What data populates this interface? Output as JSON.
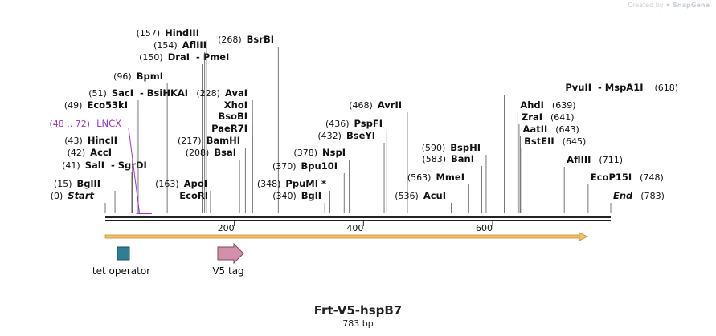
{
  "brand": {
    "created_by": "Created by",
    "name": "SnapGene"
  },
  "title": "Frt-V5-hspB7",
  "length_label": "783 bp",
  "sequence_length": 783,
  "ruler": {
    "ticks": [
      200,
      400,
      600
    ]
  },
  "sites": [
    {
      "name": "Start",
      "pos": "(0)",
      "bp": 0,
      "italic": true
    },
    {
      "name": "BglII",
      "pos": "(15)",
      "bp": 15
    },
    {
      "name": "SalI",
      "name2": "SgrDI",
      "pos": "(41)",
      "bp": 41
    },
    {
      "name": "AccI",
      "pos": "(42)",
      "bp": 42
    },
    {
      "name": "HincII",
      "pos": "(43)",
      "bp": 43
    },
    {
      "name": "LNCX",
      "pos": "(48 .. 72)",
      "bp": 48,
      "bp_end": 72,
      "feature": true
    },
    {
      "name": "Eco53kI",
      "pos": "(49)",
      "bp": 49
    },
    {
      "name": "SacI",
      "name2": "BsiHKAI",
      "pos": "(51)",
      "bp": 51
    },
    {
      "name": "BpmI",
      "pos": "(96)",
      "bp": 96
    },
    {
      "name": "DraI",
      "name2": "PmeI",
      "pos": "(150)",
      "bp": 150
    },
    {
      "name": "AflIII",
      "pos": "(154)",
      "bp": 154
    },
    {
      "name": "HindIII",
      "pos": "(157)",
      "bp": 157
    },
    {
      "name": "ApoI",
      "pos": "(163)",
      "bp": 163
    },
    {
      "name": "EcoRI",
      "pos": "",
      "bp": 163
    },
    {
      "name": "BsaI",
      "pos": "(208)",
      "bp": 208
    },
    {
      "name": "BamHI",
      "pos": "(217)",
      "bp": 217
    },
    {
      "name": "PaeR7I",
      "pos": "",
      "bp": 228
    },
    {
      "name": "BsoBI",
      "pos": "",
      "bp": 228
    },
    {
      "name": "XhoI",
      "pos": "",
      "bp": 228
    },
    {
      "name": "AvaI",
      "pos": "(228)",
      "bp": 228
    },
    {
      "name": "BsrBI",
      "pos": "(268)",
      "bp": 268
    },
    {
      "name": "BglI",
      "pos": "(340)",
      "bp": 340
    },
    {
      "name": "PpuMI *",
      "pos": "(348)",
      "bp": 348
    },
    {
      "name": "Bpu10I",
      "pos": "(370)",
      "bp": 370
    },
    {
      "name": "NspI",
      "pos": "(378)",
      "bp": 378
    },
    {
      "name": "BseYI",
      "pos": "(432)",
      "bp": 432
    },
    {
      "name": "PspFI",
      "pos": "(436)",
      "bp": 436
    },
    {
      "name": "AvrII",
      "pos": "(468)",
      "bp": 468
    },
    {
      "name": "AcuI",
      "pos": "(536)",
      "bp": 536
    },
    {
      "name": "MmeI",
      "pos": "(563)",
      "bp": 563
    },
    {
      "name": "BanI",
      "pos": "(583)",
      "bp": 583
    },
    {
      "name": "BspHI",
      "pos": "(590)",
      "bp": 590
    },
    {
      "name": "PvuII",
      "name2": "MspA1I",
      "pos": "(618)",
      "bp": 618
    },
    {
      "name": "AhdI",
      "pos": "(639)",
      "bp": 639
    },
    {
      "name": "ZraI",
      "pos": "(641)",
      "bp": 641
    },
    {
      "name": "AatII",
      "pos": "(643)",
      "bp": 643
    },
    {
      "name": "BstEII",
      "pos": "(645)",
      "bp": 645
    },
    {
      "name": "AflIII",
      "pos": "(711)",
      "bp": 711
    },
    {
      "name": "EcoP15I",
      "pos": "(748)",
      "bp": 748
    },
    {
      "name": "End",
      "pos": "(783)",
      "bp": 783,
      "italic": true
    }
  ],
  "features": [
    {
      "name": "tet operator",
      "color": "#2e7f96",
      "shape": "box"
    },
    {
      "name": "V5 tag",
      "color": "#d291ab",
      "shape": "arrow"
    }
  ],
  "colors": {
    "orf": "#f3c271",
    "feature_label": "#9b35d6",
    "text": "#111111",
    "line": "#555555"
  }
}
